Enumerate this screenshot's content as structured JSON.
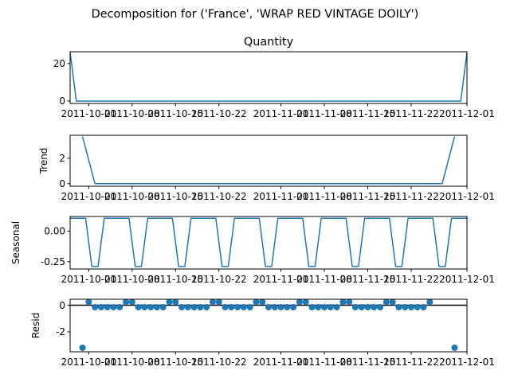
{
  "chart_data": {
    "suptitle": "Decomposition for ('France', 'WRAP RED VINTAGE DOILY')",
    "x_start": "2011-09-28",
    "x_end": "2011-12-01",
    "x_tick_labels": [
      "2011-10-01",
      "2011-10-08",
      "2011-10-15",
      "2011-10-22",
      "2011-11-01",
      "2011-11-08",
      "2011-11-15",
      "2011-11-22",
      "2011-12-01"
    ],
    "x_tick_dates": [
      "2011-10-01",
      "2011-10-08",
      "2011-10-15",
      "2011-10-22",
      "2011-11-01",
      "2011-11-08",
      "2011-11-15",
      "2011-11-22",
      "2011-12-01"
    ],
    "line_color": "#1f77b4",
    "panels": [
      {
        "key": "observed",
        "type": "line",
        "title": "Quantity",
        "ylabel": "",
        "ylim": [
          -1.3,
          26.3
        ],
        "yticks": [
          0,
          20
        ],
        "points": [
          [
            "2011-09-28",
            26
          ],
          [
            "2011-09-29",
            0
          ],
          [
            "2011-11-30",
            0
          ],
          [
            "2011-12-01",
            26
          ]
        ]
      },
      {
        "key": "trend",
        "type": "line",
        "title": "",
        "ylabel": "Trend",
        "ylim": [
          -0.2,
          3.8
        ],
        "yticks": [
          0,
          2
        ],
        "points": [
          [
            "2011-09-30",
            3.7
          ],
          [
            "2011-10-02",
            0
          ],
          [
            "2011-11-27",
            0
          ],
          [
            "2011-11-29",
            3.7
          ]
        ]
      },
      {
        "key": "seasonal",
        "type": "seasonal",
        "title": "",
        "ylabel": "Seasonal",
        "ylim": [
          -0.31,
          0.12
        ],
        "yticks": [
          0.0,
          -0.25
        ],
        "high": 0.105,
        "low": -0.29,
        "low_start_dates": [
          "2011-10-01",
          "2011-10-08",
          "2011-10-15",
          "2011-10-22",
          "2011-10-29",
          "2011-11-05",
          "2011-11-12",
          "2011-11-19",
          "2011-11-26"
        ]
      },
      {
        "key": "resid",
        "type": "scatter",
        "title": "",
        "ylabel": "Resid",
        "ylim": [
          -3.5,
          0.45
        ],
        "yticks": [
          0,
          -2
        ],
        "baseline": 0,
        "points": [
          [
            "2011-09-30",
            -3.2
          ],
          [
            "2011-10-01",
            0.25
          ],
          [
            "2011-10-02",
            -0.15
          ],
          [
            "2011-10-03",
            -0.15
          ],
          [
            "2011-10-04",
            -0.15
          ],
          [
            "2011-10-05",
            -0.15
          ],
          [
            "2011-10-06",
            -0.15
          ],
          [
            "2011-10-07",
            0.25
          ],
          [
            "2011-10-08",
            0.25
          ],
          [
            "2011-10-09",
            -0.15
          ],
          [
            "2011-10-10",
            -0.15
          ],
          [
            "2011-10-11",
            -0.15
          ],
          [
            "2011-10-12",
            -0.15
          ],
          [
            "2011-10-13",
            -0.15
          ],
          [
            "2011-10-14",
            0.25
          ],
          [
            "2011-10-15",
            0.25
          ],
          [
            "2011-10-16",
            -0.15
          ],
          [
            "2011-10-17",
            -0.15
          ],
          [
            "2011-10-18",
            -0.15
          ],
          [
            "2011-10-19",
            -0.15
          ],
          [
            "2011-10-20",
            -0.15
          ],
          [
            "2011-10-21",
            0.25
          ],
          [
            "2011-10-22",
            0.25
          ],
          [
            "2011-10-23",
            -0.15
          ],
          [
            "2011-10-24",
            -0.15
          ],
          [
            "2011-10-25",
            -0.15
          ],
          [
            "2011-10-26",
            -0.15
          ],
          [
            "2011-10-27",
            -0.15
          ],
          [
            "2011-10-28",
            0.25
          ],
          [
            "2011-10-29",
            0.25
          ],
          [
            "2011-10-30",
            -0.15
          ],
          [
            "2011-10-31",
            -0.15
          ],
          [
            "2011-11-01",
            -0.15
          ],
          [
            "2011-11-02",
            -0.15
          ],
          [
            "2011-11-03",
            -0.15
          ],
          [
            "2011-11-04",
            0.25
          ],
          [
            "2011-11-05",
            0.25
          ],
          [
            "2011-11-06",
            -0.15
          ],
          [
            "2011-11-07",
            -0.15
          ],
          [
            "2011-11-08",
            -0.15
          ],
          [
            "2011-11-09",
            -0.15
          ],
          [
            "2011-11-10",
            -0.15
          ],
          [
            "2011-11-11",
            0.25
          ],
          [
            "2011-11-12",
            0.25
          ],
          [
            "2011-11-13",
            -0.15
          ],
          [
            "2011-11-14",
            -0.15
          ],
          [
            "2011-11-15",
            -0.15
          ],
          [
            "2011-11-16",
            -0.15
          ],
          [
            "2011-11-17",
            -0.15
          ],
          [
            "2011-11-18",
            0.25
          ],
          [
            "2011-11-19",
            0.25
          ],
          [
            "2011-11-20",
            -0.15
          ],
          [
            "2011-11-21",
            -0.15
          ],
          [
            "2011-11-22",
            -0.15
          ],
          [
            "2011-11-23",
            -0.15
          ],
          [
            "2011-11-24",
            -0.15
          ],
          [
            "2011-11-25",
            0.25
          ],
          [
            "2011-11-29",
            -3.2
          ]
        ]
      }
    ]
  }
}
